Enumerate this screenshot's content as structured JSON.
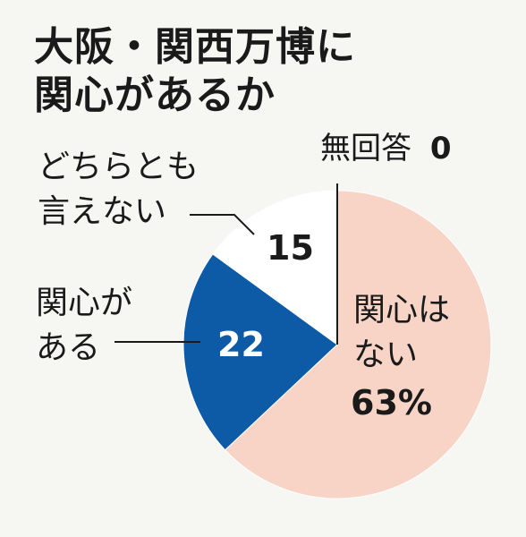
{
  "chart_data": {
    "type": "pie",
    "title": [
      "大阪・関西万博に",
      "関心があるか"
    ],
    "slices": [
      {
        "label": [
          "関心は",
          "ない"
        ],
        "value": 63,
        "value_label": "63%",
        "color": "#f7d4c6"
      },
      {
        "label": [
          "関心が",
          "ある"
        ],
        "value": 22,
        "value_label": "22",
        "color": "#0d5aa7"
      },
      {
        "label": [
          "どちらとも",
          "言えない"
        ],
        "value": 15,
        "value_label": "15",
        "color": "#ffffff"
      },
      {
        "label": [
          "無回答"
        ],
        "value": 0,
        "value_label": "0",
        "color": "#ffffff"
      }
    ],
    "start": "12 o'clock",
    "direction": "clockwise"
  }
}
